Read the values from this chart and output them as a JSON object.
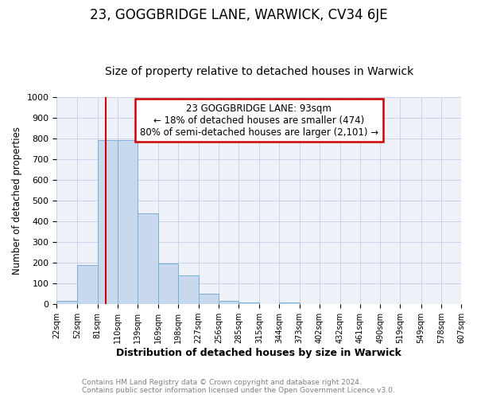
{
  "title": "23, GOGGBRIDGE LANE, WARWICK, CV34 6JE",
  "subtitle": "Size of property relative to detached houses in Warwick",
  "xlabel": "Distribution of detached houses by size in Warwick",
  "ylabel": "Number of detached properties",
  "footer1": "Contains HM Land Registry data © Crown copyright and database right 2024.",
  "footer2": "Contains public sector information licensed under the Open Government Licence v3.0.",
  "bin_edges": [
    22,
    52,
    81,
    110,
    139,
    169,
    198,
    227,
    256,
    285,
    315,
    344,
    373,
    402,
    432,
    461,
    490,
    519,
    549,
    578,
    607
  ],
  "bar_values": [
    15,
    190,
    790,
    790,
    440,
    195,
    140,
    50,
    15,
    10,
    0,
    10,
    0,
    0,
    0,
    0,
    0,
    0,
    0,
    0
  ],
  "bar_color": "#c8d9ed",
  "bar_edgecolor": "#7bafd4",
  "vline_x": 93,
  "vline_color": "#cc0000",
  "annotation_title": "23 GOGGBRIDGE LANE: 93sqm",
  "annotation_line2": "← 18% of detached houses are smaller (474)",
  "annotation_line3": "80% of semi-detached houses are larger (2,101) →",
  "annotation_box_color": "#cc0000",
  "ylim": [
    0,
    1000
  ],
  "yticks": [
    0,
    100,
    200,
    300,
    400,
    500,
    600,
    700,
    800,
    900,
    1000
  ],
  "grid_color": "#c8d4e8",
  "background_color": "#eef2f8",
  "title_fontsize": 12,
  "subtitle_fontsize": 10,
  "title_fontweight": "normal"
}
